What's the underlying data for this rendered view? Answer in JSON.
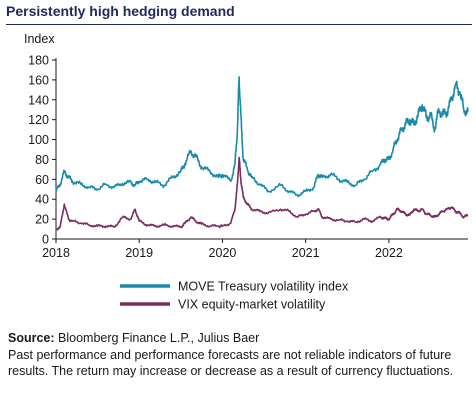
{
  "title": "Persistently high hedging demand",
  "footer": {
    "source_label": "Source:",
    "source_text": "Bloomberg Finance L.P., Julius Baer",
    "disclaimer": "Past performance and performance forecasts are not reliable indicators of future results. The return may increase or decrease as a result of currency fluctuations."
  },
  "colors": {
    "move": "#1a8aaa",
    "vix": "#7b2c62",
    "axis": "#1a1a1a",
    "title": "#1f2a5c"
  },
  "chart_data": {
    "type": "line",
    "ylabel": "Index",
    "ylim": [
      0,
      180
    ],
    "yticks": [
      0,
      20,
      40,
      60,
      80,
      100,
      120,
      140,
      160,
      180
    ],
    "xlim": [
      2018.0,
      2022.95
    ],
    "xticks": [
      2018,
      2019,
      2020,
      2021,
      2022
    ],
    "grid": false,
    "legend_placement": "bottom",
    "series": [
      {
        "name": "MOVE Treasury volatility index",
        "color": "#1a8aaa",
        "x": [
          2018.0,
          2018.05,
          2018.1,
          2018.15,
          2018.2,
          2018.3,
          2018.4,
          2018.5,
          2018.6,
          2018.7,
          2018.8,
          2018.9,
          2018.95,
          2019.0,
          2019.1,
          2019.2,
          2019.3,
          2019.4,
          2019.5,
          2019.55,
          2019.62,
          2019.68,
          2019.75,
          2019.85,
          2019.95,
          2020.0,
          2020.1,
          2020.15,
          2020.18,
          2020.2,
          2020.22,
          2020.25,
          2020.3,
          2020.35,
          2020.45,
          2020.55,
          2020.7,
          2020.8,
          2020.9,
          2021.0,
          2021.1,
          2021.15,
          2021.2,
          2021.3,
          2021.4,
          2021.5,
          2021.6,
          2021.7,
          2021.8,
          2021.9,
          2021.95,
          2022.0,
          2022.05,
          2022.1,
          2022.15,
          2022.2,
          2022.25,
          2022.3,
          2022.35,
          2022.4,
          2022.45,
          2022.5,
          2022.55,
          2022.6,
          2022.65,
          2022.7,
          2022.75,
          2022.8,
          2022.85,
          2022.9,
          2022.95
        ],
        "values": [
          48,
          55,
          68,
          62,
          58,
          55,
          52,
          50,
          55,
          52,
          56,
          57,
          54,
          58,
          60,
          57,
          54,
          62,
          68,
          76,
          88,
          83,
          72,
          68,
          62,
          65,
          58,
          75,
          110,
          163,
          125,
          80,
          70,
          62,
          55,
          48,
          54,
          48,
          44,
          48,
          52,
          65,
          62,
          65,
          60,
          57,
          54,
          60,
          68,
          75,
          80,
          80,
          90,
          100,
          110,
          115,
          120,
          115,
          125,
          135,
          122,
          125,
          110,
          130,
          125,
          128,
          140,
          155,
          148,
          130,
          128
        ]
      },
      {
        "name": "VIX equity-market volatility",
        "color": "#7b2c62",
        "x": [
          2018.0,
          2018.05,
          2018.1,
          2018.15,
          2018.2,
          2018.3,
          2018.4,
          2018.5,
          2018.6,
          2018.7,
          2018.8,
          2018.9,
          2018.95,
          2019.0,
          2019.1,
          2019.2,
          2019.3,
          2019.4,
          2019.5,
          2019.55,
          2019.62,
          2019.68,
          2019.75,
          2019.85,
          2019.95,
          2020.0,
          2020.1,
          2020.15,
          2020.18,
          2020.2,
          2020.22,
          2020.25,
          2020.3,
          2020.35,
          2020.45,
          2020.55,
          2020.7,
          2020.8,
          2020.9,
          2021.0,
          2021.1,
          2021.15,
          2021.2,
          2021.3,
          2021.4,
          2021.5,
          2021.6,
          2021.7,
          2021.8,
          2021.9,
          2021.95,
          2022.0,
          2022.05,
          2022.1,
          2022.15,
          2022.2,
          2022.25,
          2022.3,
          2022.35,
          2022.4,
          2022.45,
          2022.5,
          2022.55,
          2022.6,
          2022.65,
          2022.7,
          2022.75,
          2022.8,
          2022.85,
          2022.9,
          2022.95
        ],
        "values": [
          10,
          12,
          35,
          20,
          18,
          16,
          14,
          13,
          13,
          12,
          22,
          20,
          30,
          18,
          14,
          13,
          14,
          13,
          12,
          16,
          22,
          18,
          15,
          13,
          13,
          13,
          16,
          30,
          55,
          82,
          60,
          42,
          35,
          30,
          28,
          26,
          30,
          28,
          22,
          25,
          28,
          30,
          22,
          20,
          19,
          18,
          17,
          20,
          18,
          22,
          21,
          20,
          25,
          30,
          28,
          25,
          24,
          30,
          28,
          30,
          25,
          24,
          22,
          25,
          28,
          30,
          32,
          28,
          26,
          22,
          24
        ]
      }
    ]
  }
}
